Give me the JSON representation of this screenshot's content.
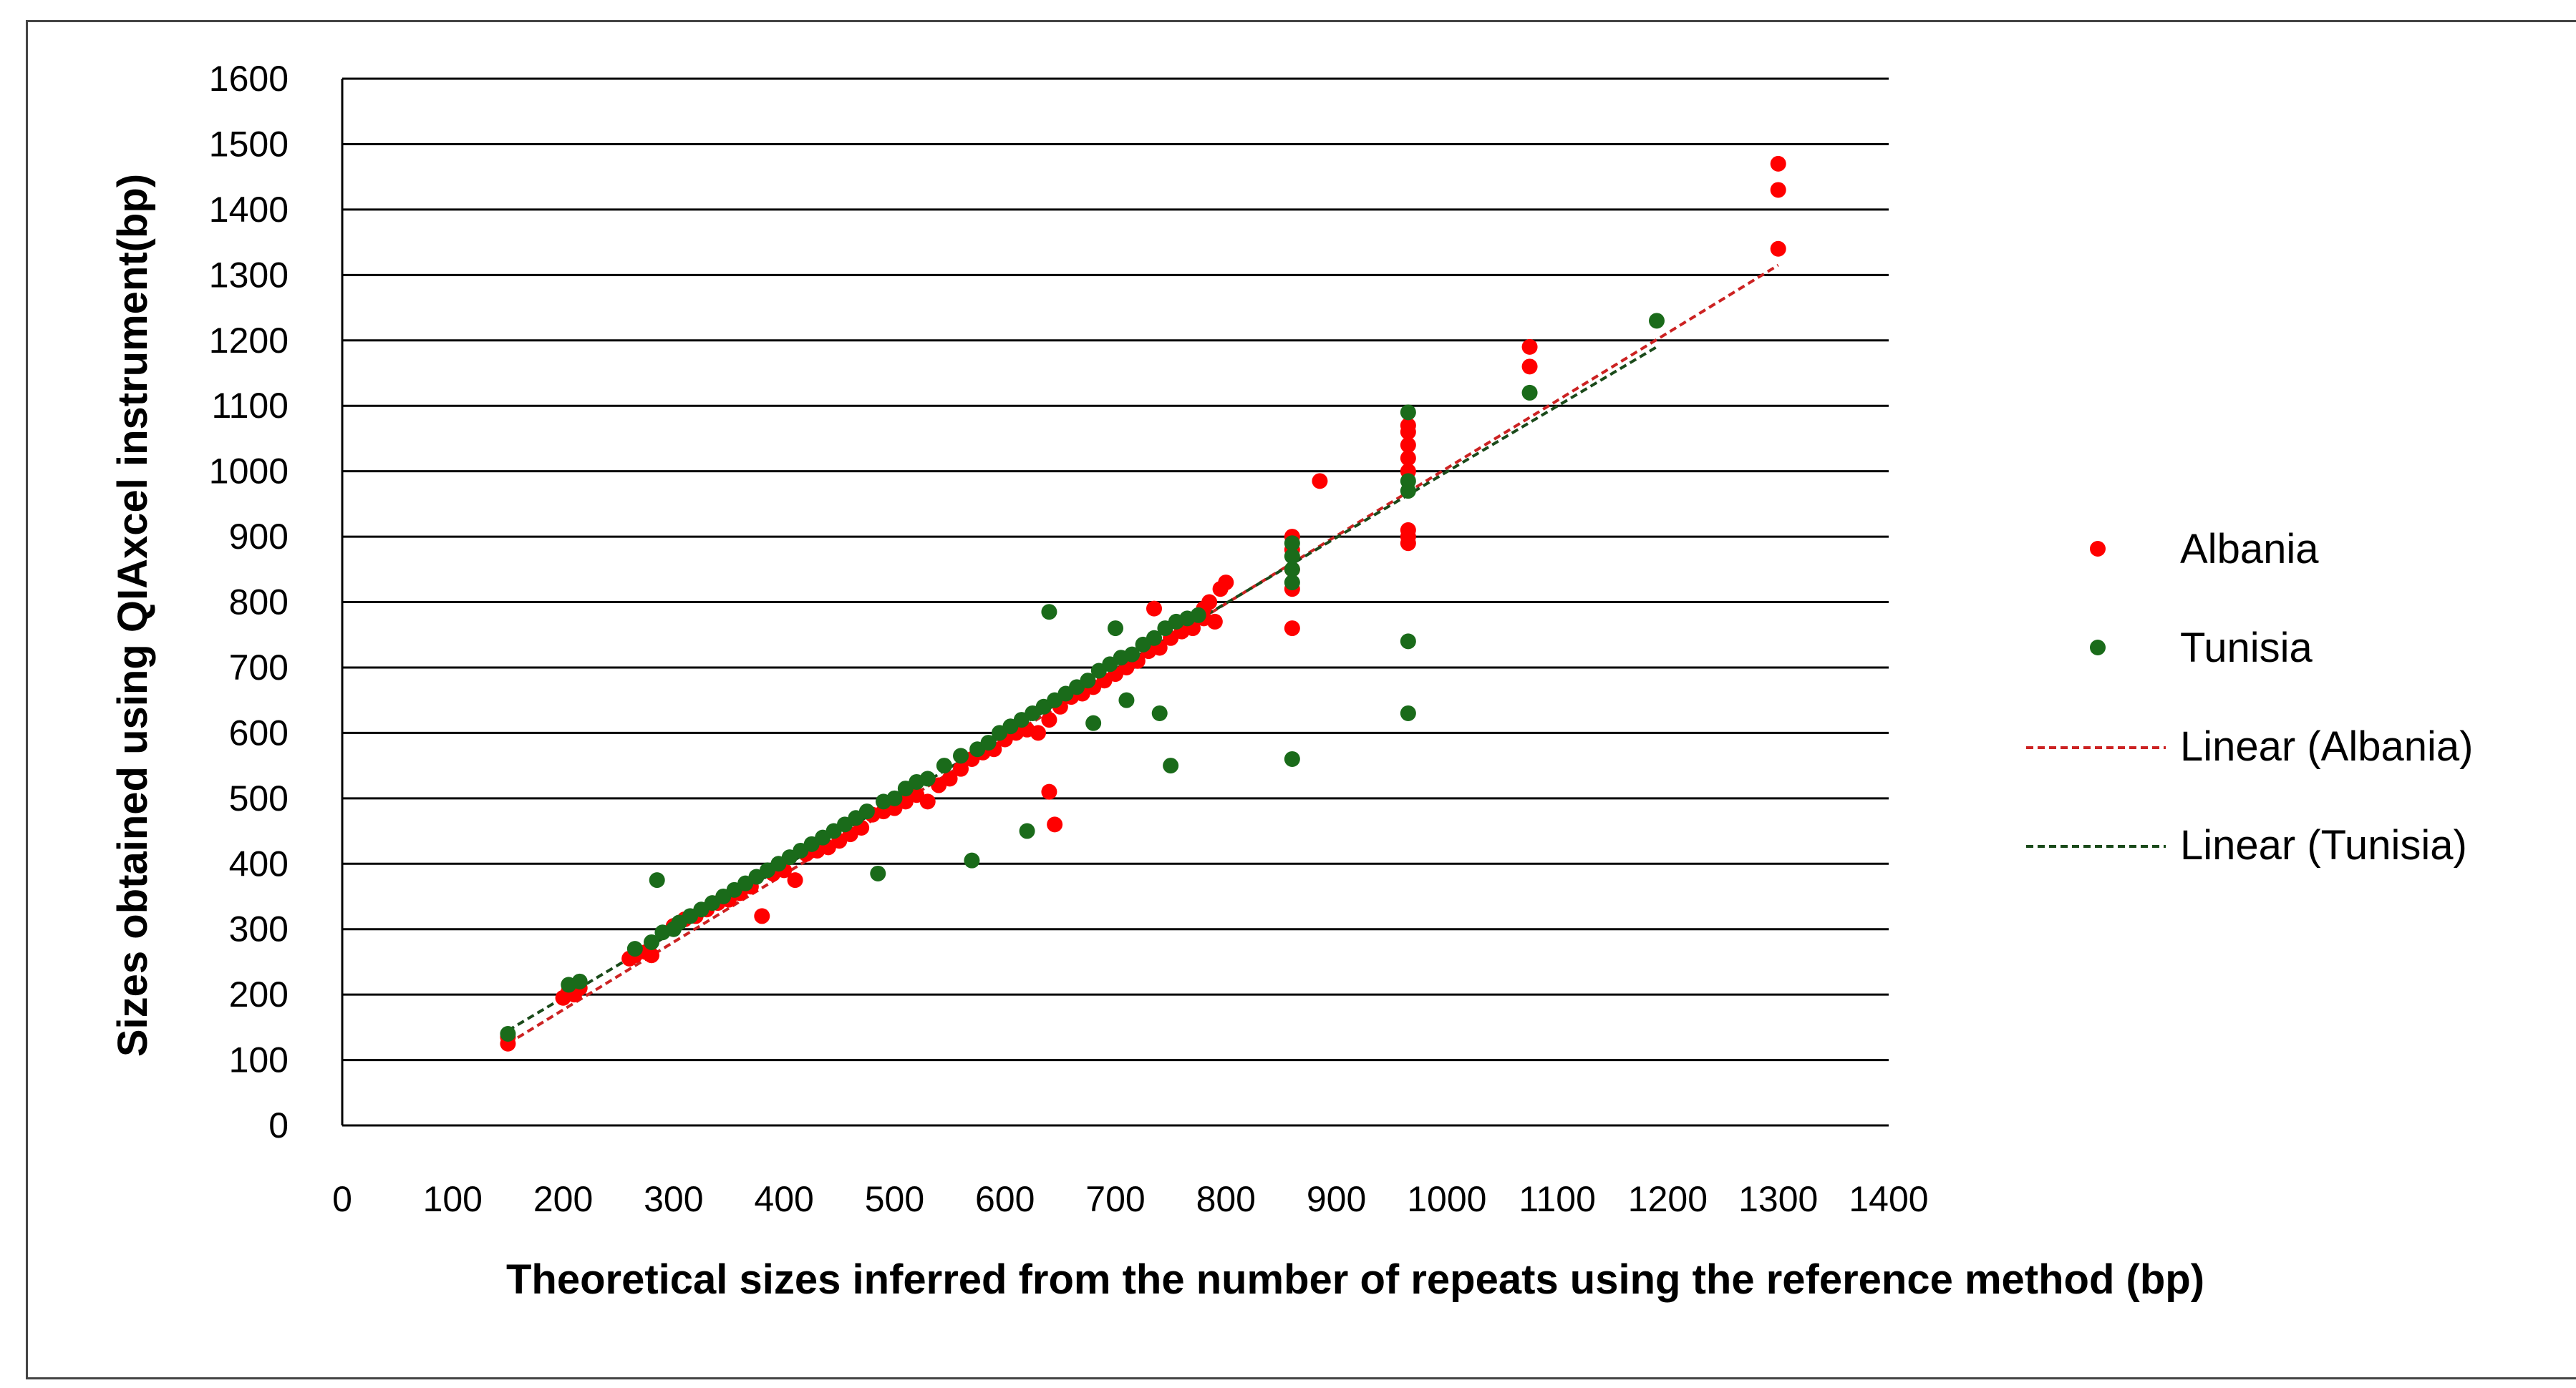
{
  "chart_data": {
    "type": "scatter",
    "title": "",
    "xlabel": "Theoretical sizes inferred from  the number of repeats using  the reference method (bp)",
    "ylabel": "Sizes obtained using  QIAxcel instrument(bp)",
    "xlim": [
      0,
      1400
    ],
    "ylim": [
      0,
      1600
    ],
    "x_ticks": [
      0,
      100,
      200,
      300,
      400,
      500,
      600,
      700,
      800,
      900,
      1000,
      1100,
      1200,
      1300,
      1400
    ],
    "y_ticks": [
      0,
      100,
      200,
      300,
      400,
      500,
      600,
      700,
      800,
      900,
      1000,
      1100,
      1200,
      1300,
      1400,
      1500,
      1600
    ],
    "x_tick_labels": [
      "0",
      "100",
      "200",
      "300",
      "400",
      "500",
      "600",
      "700",
      "800",
      "900",
      "1000",
      "1100",
      "1200",
      "1300",
      "1400"
    ],
    "y_tick_labels": [
      "0",
      "100",
      "200",
      "300",
      "400",
      "500",
      "600",
      "700",
      "800",
      "900",
      "1000",
      "1100",
      "1200",
      "1300",
      "1400",
      "1500",
      "1600"
    ],
    "grid": "horizontal",
    "legend_position": "right",
    "series": [
      {
        "name": "Albania",
        "color": "#ff0000",
        "points": [
          [
            150,
            125
          ],
          [
            150,
            135
          ],
          [
            200,
            195
          ],
          [
            205,
            205
          ],
          [
            210,
            200
          ],
          [
            215,
            210
          ],
          [
            260,
            255
          ],
          [
            265,
            260
          ],
          [
            275,
            265
          ],
          [
            280,
            260
          ],
          [
            300,
            305
          ],
          [
            310,
            315
          ],
          [
            320,
            320
          ],
          [
            330,
            330
          ],
          [
            340,
            340
          ],
          [
            350,
            345
          ],
          [
            360,
            355
          ],
          [
            370,
            365
          ],
          [
            380,
            320
          ],
          [
            390,
            385
          ],
          [
            400,
            390
          ],
          [
            410,
            375
          ],
          [
            420,
            415
          ],
          [
            430,
            420
          ],
          [
            440,
            425
          ],
          [
            450,
            435
          ],
          [
            460,
            445
          ],
          [
            470,
            455
          ],
          [
            480,
            475
          ],
          [
            490,
            480
          ],
          [
            500,
            485
          ],
          [
            510,
            495
          ],
          [
            520,
            505
          ],
          [
            530,
            495
          ],
          [
            540,
            520
          ],
          [
            550,
            530
          ],
          [
            560,
            545
          ],
          [
            570,
            560
          ],
          [
            580,
            570
          ],
          [
            590,
            575
          ],
          [
            600,
            590
          ],
          [
            610,
            600
          ],
          [
            620,
            605
          ],
          [
            630,
            600
          ],
          [
            640,
            620
          ],
          [
            645,
            460
          ],
          [
            640,
            510
          ],
          [
            650,
            640
          ],
          [
            660,
            655
          ],
          [
            670,
            660
          ],
          [
            680,
            670
          ],
          [
            690,
            680
          ],
          [
            700,
            690
          ],
          [
            710,
            700
          ],
          [
            720,
            710
          ],
          [
            730,
            725
          ],
          [
            740,
            730
          ],
          [
            750,
            745
          ],
          [
            760,
            755
          ],
          [
            770,
            760
          ],
          [
            780,
            775
          ],
          [
            780,
            790
          ],
          [
            785,
            800
          ],
          [
            790,
            770
          ],
          [
            795,
            820
          ],
          [
            800,
            830
          ],
          [
            860,
            820
          ],
          [
            860,
            850
          ],
          [
            860,
            880
          ],
          [
            860,
            900
          ],
          [
            860,
            760
          ],
          [
            885,
            985
          ],
          [
            965,
            890
          ],
          [
            965,
            900
          ],
          [
            965,
            910
          ],
          [
            965,
            1000
          ],
          [
            965,
            1020
          ],
          [
            965,
            1040
          ],
          [
            965,
            1060
          ],
          [
            965,
            1070
          ],
          [
            1075,
            1160
          ],
          [
            1075,
            1190
          ],
          [
            1300,
            1340
          ],
          [
            1300,
            1430
          ],
          [
            1300,
            1470
          ],
          [
            735,
            790
          ]
        ]
      },
      {
        "name": "Tunisia",
        "color": "#1a6b1a",
        "points": [
          [
            150,
            140
          ],
          [
            205,
            215
          ],
          [
            215,
            220
          ],
          [
            265,
            270
          ],
          [
            280,
            280
          ],
          [
            285,
            375
          ],
          [
            290,
            295
          ],
          [
            300,
            300
          ],
          [
            305,
            310
          ],
          [
            315,
            320
          ],
          [
            325,
            330
          ],
          [
            335,
            340
          ],
          [
            345,
            350
          ],
          [
            355,
            360
          ],
          [
            365,
            370
          ],
          [
            375,
            380
          ],
          [
            385,
            390
          ],
          [
            395,
            400
          ],
          [
            405,
            410
          ],
          [
            415,
            420
          ],
          [
            425,
            430
          ],
          [
            435,
            440
          ],
          [
            445,
            450
          ],
          [
            455,
            460
          ],
          [
            465,
            470
          ],
          [
            475,
            480
          ],
          [
            485,
            385
          ],
          [
            490,
            495
          ],
          [
            500,
            500
          ],
          [
            510,
            515
          ],
          [
            520,
            525
          ],
          [
            530,
            530
          ],
          [
            545,
            550
          ],
          [
            560,
            565
          ],
          [
            570,
            405
          ],
          [
            575,
            575
          ],
          [
            585,
            585
          ],
          [
            595,
            600
          ],
          [
            605,
            610
          ],
          [
            615,
            620
          ],
          [
            620,
            450
          ],
          [
            625,
            630
          ],
          [
            635,
            640
          ],
          [
            640,
            785
          ],
          [
            645,
            650
          ],
          [
            655,
            660
          ],
          [
            665,
            670
          ],
          [
            675,
            680
          ],
          [
            680,
            615
          ],
          [
            685,
            695
          ],
          [
            695,
            705
          ],
          [
            700,
            760
          ],
          [
            705,
            715
          ],
          [
            710,
            650
          ],
          [
            715,
            720
          ],
          [
            725,
            735
          ],
          [
            735,
            745
          ],
          [
            740,
            630
          ],
          [
            745,
            760
          ],
          [
            750,
            550
          ],
          [
            755,
            770
          ],
          [
            765,
            775
          ],
          [
            775,
            780
          ],
          [
            860,
            560
          ],
          [
            860,
            830
          ],
          [
            860,
            850
          ],
          [
            860,
            870
          ],
          [
            860,
            890
          ],
          [
            965,
            630
          ],
          [
            965,
            740
          ],
          [
            965,
            970
          ],
          [
            965,
            985
          ],
          [
            965,
            1090
          ],
          [
            1075,
            1120
          ],
          [
            1190,
            1230
          ]
        ]
      },
      {
        "name": "Linear (Albania)",
        "type": "line",
        "color": "#cc2222",
        "points": [
          [
            150,
            125
          ],
          [
            1300,
            1315
          ]
        ]
      },
      {
        "name": "Linear (Tunisia)",
        "type": "line",
        "color": "#1a4a1a",
        "points": [
          [
            150,
            145
          ],
          [
            1190,
            1190
          ]
        ]
      }
    ]
  }
}
